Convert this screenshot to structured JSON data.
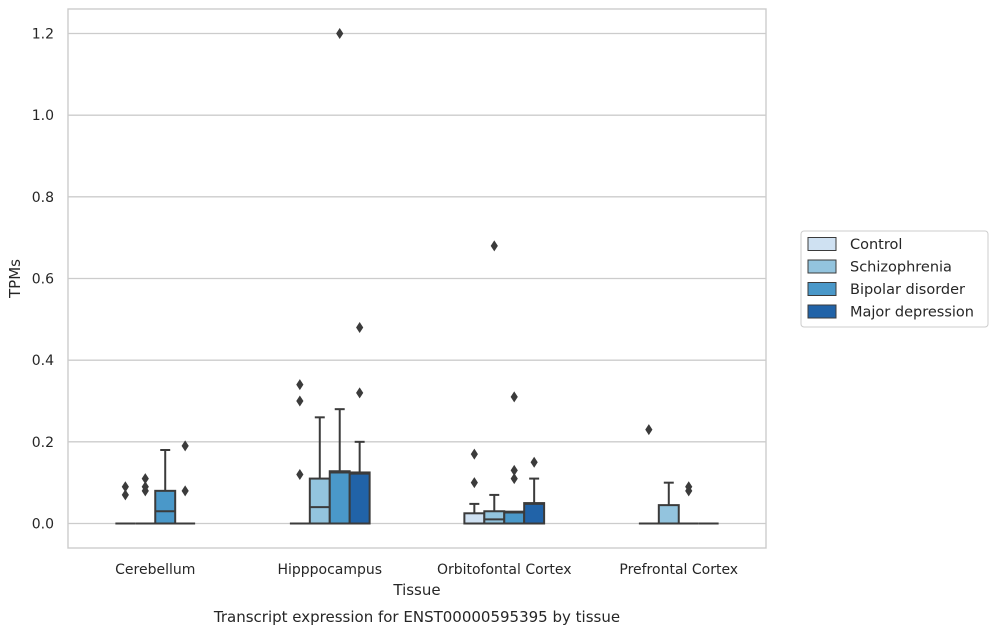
{
  "chart_data": {
    "type": "box",
    "title": "Transcript expression for ENST00000595395 by tissue",
    "xlabel": "Tissue",
    "ylabel": "TPMs",
    "ylim": [
      -0.06,
      1.26
    ],
    "y_ticks": [
      "0.0",
      "0.2",
      "0.4",
      "0.6",
      "0.8",
      "1.0",
      "1.2"
    ],
    "y_tick_values": [
      0.0,
      0.2,
      0.4,
      0.6,
      0.8,
      1.0,
      1.2
    ],
    "grid": true,
    "legend_position": "right",
    "categories": [
      "Cerebellum",
      "Hipppocampus",
      "Orbitofontal Cortex",
      "Prefrontal Cortex"
    ],
    "series": [
      {
        "name": "Control",
        "color": "#cfe1f2",
        "boxes": [
          {
            "q1": 0,
            "median": 0,
            "q3": 0,
            "whisker_low": 0,
            "whisker_high": 0,
            "outliers": [
              0.07,
              0.09
            ]
          },
          {
            "q1": 0,
            "median": 0,
            "q3": 0,
            "whisker_low": 0,
            "whisker_high": 0,
            "outliers": [
              0.12,
              0.3,
              0.34
            ]
          },
          {
            "q1": 0,
            "median": 0,
            "q3": 0.025,
            "whisker_low": 0,
            "whisker_high": 0.048,
            "outliers": [
              0.1,
              0.17
            ]
          },
          {
            "q1": 0,
            "median": 0,
            "q3": 0,
            "whisker_low": 0,
            "whisker_high": 0,
            "outliers": [
              0.23
            ]
          }
        ]
      },
      {
        "name": "Schizophrenia",
        "color": "#93c4de",
        "boxes": [
          {
            "q1": 0,
            "median": 0,
            "q3": 0,
            "whisker_low": 0,
            "whisker_high": 0,
            "outliers": [
              0.08,
              0.09,
              0.11
            ]
          },
          {
            "q1": 0,
            "median": 0.04,
            "q3": 0.11,
            "whisker_low": 0,
            "whisker_high": 0.26,
            "outliers": []
          },
          {
            "q1": 0,
            "median": 0.01,
            "q3": 0.03,
            "whisker_low": 0,
            "whisker_high": 0.07,
            "outliers": [
              0.68
            ]
          },
          {
            "q1": 0,
            "median": 0,
            "q3": 0.045,
            "whisker_low": 0,
            "whisker_high": 0.1,
            "outliers": []
          }
        ]
      },
      {
        "name": "Bipolar disorder",
        "color": "#4a98c9",
        "boxes": [
          {
            "q1": 0,
            "median": 0.03,
            "q3": 0.08,
            "whisker_low": 0,
            "whisker_high": 0.18,
            "outliers": []
          },
          {
            "q1": 0,
            "median": 0.125,
            "q3": 0.128,
            "whisker_low": 0,
            "whisker_high": 0.28,
            "outliers": [
              1.2
            ]
          },
          {
            "q1": 0,
            "median": 0.027,
            "q3": 0.029,
            "whisker_low": 0,
            "whisker_high": 0.029,
            "outliers": [
              0.11,
              0.13,
              0.31
            ]
          },
          {
            "q1": 0,
            "median": 0,
            "q3": 0,
            "whisker_low": 0,
            "whisker_high": 0,
            "outliers": [
              0.08,
              0.09
            ]
          }
        ]
      },
      {
        "name": "Major depression",
        "color": "#2163a8",
        "boxes": [
          {
            "q1": 0,
            "median": 0,
            "q3": 0,
            "whisker_low": 0,
            "whisker_high": 0,
            "outliers": [
              0.08,
              0.19
            ]
          },
          {
            "q1": 0,
            "median": 0.122,
            "q3": 0.125,
            "whisker_low": 0,
            "whisker_high": 0.2,
            "outliers": [
              0.32,
              0.48
            ]
          },
          {
            "q1": 0,
            "median": 0.048,
            "q3": 0.05,
            "whisker_low": 0,
            "whisker_high": 0.11,
            "outliers": [
              0.15
            ]
          },
          {
            "q1": 0,
            "median": 0,
            "q3": 0,
            "whisker_low": 0,
            "whisker_high": 0,
            "outliers": []
          }
        ]
      }
    ]
  }
}
